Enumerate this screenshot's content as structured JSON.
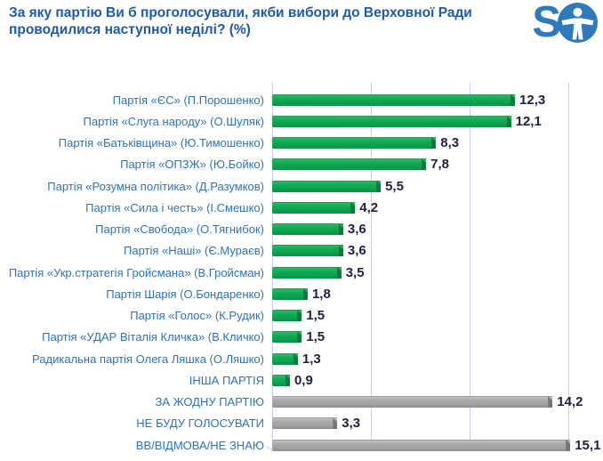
{
  "header": {
    "title": "За яку партію Ви б проголосували, якби вибори до Верховної Ради проводилися наступної неділі? (%)",
    "logo_text": "S"
  },
  "colors": {
    "title_blue": "#1f5ba8",
    "category_label_blue": "#2e74b5",
    "value_label_dark": "#1e2140",
    "green_bar": "#0ba04c",
    "green_bar_cap": "#0a7a3c",
    "gray_bar": "#a5a5a5",
    "gray_bar_cap": "#767676",
    "gridline": "#c7cfe9",
    "logo_blue": "#2e7abd"
  },
  "chart_data": {
    "type": "bar",
    "orientation": "horizontal",
    "title": "За яку партію Ви б проголосували, якби вибори до Верховної Ради проводилися наступної неділі? (%)",
    "xlabel": "",
    "ylabel": "",
    "xlim": [
      0,
      16
    ],
    "gridline_interval": 5,
    "grid": true,
    "legend": false,
    "data_labels": true,
    "decimal_separator": ",",
    "categories": [
      "Партія «ЄС» (П.Порошенко)",
      "Партія «Слуга народу» (О.Шуляк)",
      "Партія «Батьківщина» (Ю.Тимошенко)",
      "Партія «ОПЗЖ» (Ю.Бойко)",
      "Партія «Розумна політика» (Д.Разумков)",
      "Партія «Сила і честь» (І.Смешко)",
      "Партія «Свобода» (О.Тягнибок)",
      "Партія «Наші» (Є.Мураєв)",
      "Партія «Укр.стратегія Гройсмана» (В.Гройсман)",
      "Партія Шарія (О.Бондаренко)",
      "Партія «Голос» (К.Рудик)",
      "Партія «УДАР Віталія Кличка» (В.Кличко)",
      "Радикальна партія Олега Ляшка (О.Ляшко)",
      "ІНША ПАРТІЯ",
      "ЗА ЖОДНУ ПАРТІЮ",
      "НЕ БУДУ ГОЛОСУВАТИ",
      "ВВ/ВІДМОВА/НЕ ЗНАЮ"
    ],
    "values": [
      12.3,
      12.1,
      8.3,
      7.8,
      5.5,
      4.2,
      3.6,
      3.6,
      3.5,
      1.8,
      1.5,
      1.5,
      1.3,
      0.9,
      14.2,
      3.3,
      15.1
    ],
    "value_labels": [
      "12,3",
      "12,1",
      "8,3",
      "7,8",
      "5,5",
      "4,2",
      "3,6",
      "3,6",
      "3,5",
      "1,8",
      "1,5",
      "1,5",
      "1,3",
      "0,9",
      "14,2",
      "3,3",
      "15,1"
    ],
    "bar_colors": [
      "green",
      "green",
      "green",
      "green",
      "green",
      "green",
      "green",
      "green",
      "green",
      "green",
      "green",
      "green",
      "green",
      "green",
      "gray",
      "gray",
      "gray"
    ]
  }
}
